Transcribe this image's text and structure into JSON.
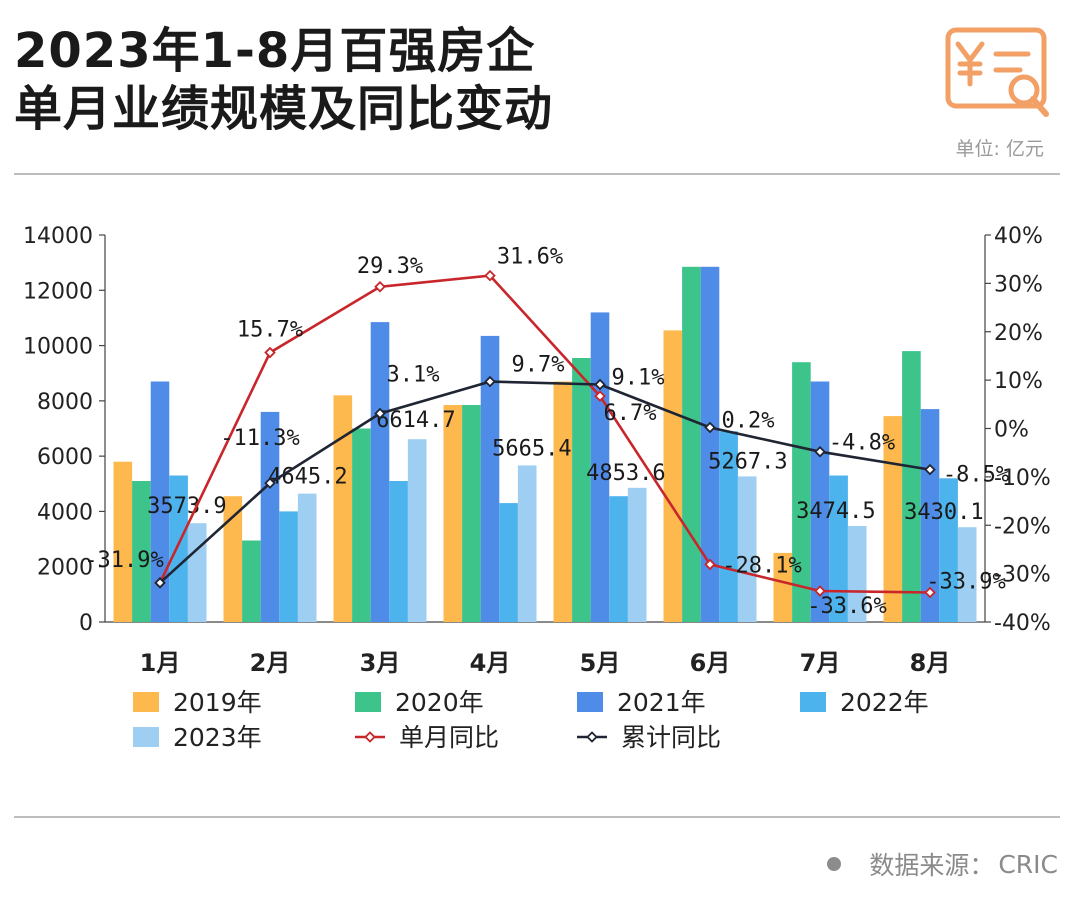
{
  "header": {
    "title_line1": "2023年1-8月百强房企",
    "title_line2": "单月业绩规模及同比变动",
    "unit": "单位: 亿元"
  },
  "footer": {
    "source_label": "数据来源：",
    "source_name": "CRIC"
  },
  "colors": {
    "s2019": "#FDB94D",
    "s2020": "#3CC48A",
    "s2021": "#4F8CE8",
    "s2022": "#4DB3EC",
    "s2023": "#9ECFF2",
    "monthly": "#C8262B",
    "cumulative": "#1F2533",
    "logo": "#F2A066"
  },
  "chart_data": {
    "type": "bar",
    "title": "2023年1-8月百强房企单月业绩规模及同比变动",
    "categories": [
      "1月",
      "2月",
      "3月",
      "4月",
      "5月",
      "6月",
      "7月",
      "8月"
    ],
    "ylim": [
      0,
      14000
    ],
    "yticks": [
      "0",
      "2000",
      "4000",
      "6000",
      "8000",
      "10000",
      "12000",
      "14000"
    ],
    "y2lim": [
      -40,
      40
    ],
    "y2ticks": [
      "-40%",
      "-30%",
      "-20%",
      "-10%",
      "0%",
      "10%",
      "20%",
      "30%",
      "40%"
    ],
    "series": [
      {
        "name": "2019年",
        "values": [
          5800,
          4550,
          8200,
          7850,
          8700,
          10550,
          2500,
          7450
        ]
      },
      {
        "name": "2020年",
        "values": [
          5100,
          2950,
          7000,
          7850,
          9550,
          12850,
          9400,
          9800
        ]
      },
      {
        "name": "2021年",
        "values": [
          8700,
          7600,
          10850,
          10350,
          11200,
          12850,
          8700,
          7700
        ]
      },
      {
        "name": "2022年",
        "values": [
          5300,
          4000,
          5100,
          4300,
          4550,
          6900,
          5300,
          5200
        ]
      },
      {
        "name": "2023年",
        "values": [
          3573.9,
          4645.2,
          6614.7,
          5665.4,
          4853.6,
          5267.3,
          3474.5,
          3430.1
        ]
      }
    ],
    "bar_labels_2023": [
      "3573.9",
      "4645.2",
      "6614.7",
      "5665.4",
      "4853.6",
      "5267.3",
      "3474.5",
      "3430.1"
    ],
    "lines": [
      {
        "name": "单月同比",
        "axis": "right",
        "values": [
          -31.9,
          15.7,
          29.3,
          31.6,
          6.7,
          -28.1,
          -33.6,
          -33.9
        ],
        "labels": [
          "-31.9%",
          "15.7%",
          "29.3%",
          "31.6%",
          "6.7%",
          "-28.1%",
          "-33.6%",
          "-33.9%"
        ]
      },
      {
        "name": "累计同比",
        "axis": "right",
        "values": [
          -31.9,
          -11.3,
          3.1,
          9.7,
          9.1,
          0.2,
          -4.8,
          -8.5
        ],
        "labels": [
          "",
          "-11.3%",
          "3.1%",
          "9.7%",
          "9.1%",
          "0.2%",
          "-4.8%",
          "-8.5%"
        ]
      }
    ],
    "legend": [
      "2019年",
      "2020年",
      "2021年",
      "2022年",
      "2023年",
      "单月同比",
      "累计同比"
    ],
    "legend_position": "bottom"
  }
}
